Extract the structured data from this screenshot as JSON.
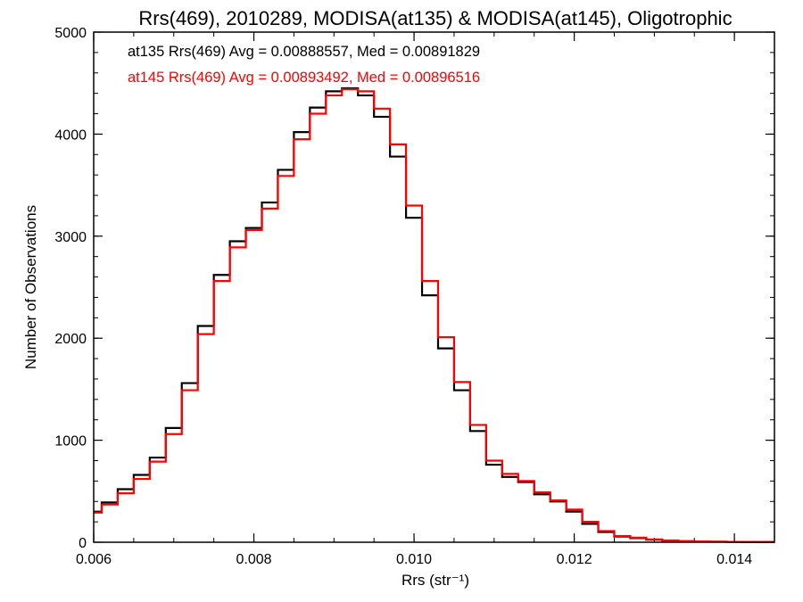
{
  "chart_data": {
    "type": "line",
    "title": "Rrs(469), 2010289, MODISA(at135) & MODISA(at145), Oligotrophic",
    "xlabel": "Rrs (str⁻¹)",
    "ylabel": "Number of Observations",
    "xlim": [
      0.006,
      0.0145
    ],
    "ylim": [
      0,
      5000
    ],
    "x_ticks": [
      {
        "value": 0.006,
        "label": "0.006"
      },
      {
        "value": 0.008,
        "label": "0.008"
      },
      {
        "value": 0.01,
        "label": "0.010"
      },
      {
        "value": 0.012,
        "label": "0.012"
      },
      {
        "value": 0.014,
        "label": "0.014"
      }
    ],
    "y_ticks": [
      {
        "value": 0,
        "label": "0"
      },
      {
        "value": 1000,
        "label": "1000"
      },
      {
        "value": 2000,
        "label": "2000"
      },
      {
        "value": 3000,
        "label": "3000"
      },
      {
        "value": 4000,
        "label": "4000"
      },
      {
        "value": 5000,
        "label": "5000"
      }
    ],
    "grid": false,
    "series": [
      {
        "color": "#000000",
        "label": "at135 Rrs(469) Avg = 0.00888557, Med = 0.00891829",
        "x": [
          0.006,
          0.0062,
          0.0064,
          0.0066,
          0.0068,
          0.007,
          0.0072,
          0.0074,
          0.0076,
          0.0078,
          0.008,
          0.0082,
          0.0084,
          0.0086,
          0.0088,
          0.009,
          0.0092,
          0.0094,
          0.0096,
          0.0098,
          0.01,
          0.0102,
          0.0104,
          0.0106,
          0.0108,
          0.011,
          0.0112,
          0.0114,
          0.0116,
          0.0118,
          0.012,
          0.0122,
          0.0124,
          0.0126,
          0.0128,
          0.013,
          0.0132,
          0.0134,
          0.0136,
          0.0138,
          0.014,
          0.0142,
          0.0144
        ],
        "y": [
          300,
          390,
          520,
          660,
          830,
          1120,
          1560,
          2120,
          2620,
          2950,
          3080,
          3330,
          3650,
          4020,
          4260,
          4420,
          4450,
          4380,
          4170,
          3780,
          3180,
          2420,
          1900,
          1490,
          1090,
          760,
          640,
          590,
          470,
          400,
          300,
          180,
          100,
          55,
          40,
          25,
          15,
          10,
          8,
          5,
          4,
          3,
          2
        ]
      },
      {
        "color": "#ff0000",
        "label": "at145 Rrs(469) Avg = 0.00893492, Med = 0.00896516",
        "x": [
          0.006,
          0.0062,
          0.0064,
          0.0066,
          0.0068,
          0.007,
          0.0072,
          0.0074,
          0.0076,
          0.0078,
          0.008,
          0.0082,
          0.0084,
          0.0086,
          0.0088,
          0.009,
          0.0092,
          0.0094,
          0.0096,
          0.0098,
          0.01,
          0.0102,
          0.0104,
          0.0106,
          0.0108,
          0.011,
          0.0112,
          0.0114,
          0.0116,
          0.0118,
          0.012,
          0.0122,
          0.0124,
          0.0126,
          0.0128,
          0.013,
          0.0132,
          0.0134,
          0.0136,
          0.0138,
          0.014,
          0.0142,
          0.0144
        ],
        "y": [
          290,
          370,
          480,
          620,
          790,
          1060,
          1490,
          2040,
          2560,
          2890,
          3060,
          3270,
          3590,
          3950,
          4200,
          4380,
          4440,
          4420,
          4250,
          3900,
          3300,
          2560,
          2010,
          1570,
          1150,
          800,
          670,
          600,
          490,
          410,
          320,
          200,
          110,
          60,
          45,
          28,
          18,
          11,
          8,
          6,
          4,
          3,
          2
        ]
      }
    ]
  }
}
